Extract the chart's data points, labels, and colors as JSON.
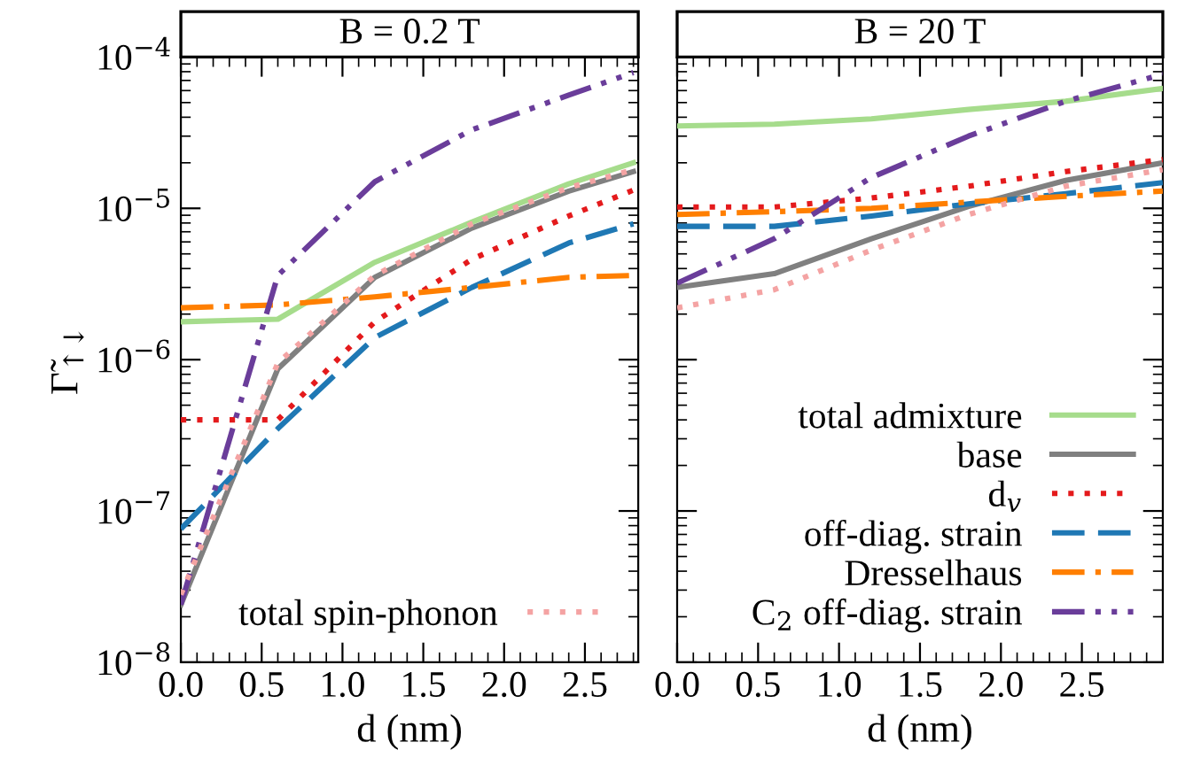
{
  "chart_data": [
    {
      "type": "line",
      "title": "B = 0.2 T",
      "xlabel": "d (nm)",
      "ylabel": "Γ̃$_{↑↓}$",
      "log": "y",
      "grid": false,
      "legend": "bottom right",
      "x": [
        0,
        0.6,
        1.2,
        1.8,
        2.4,
        2.8
      ],
      "xlim": [
        0,
        2.83
      ],
      "xticks": [
        {
          "value": 0,
          "label": "0.0"
        },
        0.5,
        {
          "value": 1,
          "label": "1.0"
        },
        1.5,
        {
          "value": 2,
          "label": "2.0"
        },
        2.5
      ],
      "ylim": [
        1e-08,
        0.0001
      ],
      "yticks": [
        {
          "value": 1e-08,
          "label": "10$^{−8}$"
        },
        {
          "value": 1e-07,
          "label": "10$^{−7}$"
        },
        {
          "value": 1e-06,
          "label": "10$^{−6}$"
        },
        {
          "value": 1e-05,
          "label": "10$^{−5}$"
        },
        {
          "value": 0.0001,
          "label": "10$^{−4}$"
        }
      ],
      "series": [
        {
          "color": "#a6dc8c",
          "line_style": "solid",
          "values": [
            1.78e-06,
            1.85e-06,
            4.4e-06,
            8.1e-06,
            1.45e-05,
            2e-05
          ]
        },
        {
          "color": "#808080",
          "line_style": "solid",
          "values": [
            2.4e-08,
            8.7e-07,
            3.5e-06,
            7.4e-06,
            1.3e-05,
            1.75e-05
          ]
        },
        {
          "color": "#e41a1c",
          "line_style": "dotted",
          "values": [
            4e-07,
            4e-07,
            1.78e-06,
            4.6e-06,
            8.9e-06,
            1.32e-05
          ]
        },
        {
          "color": "#1f78b4",
          "line_style": "dashed",
          "values": [
            7.6e-08,
            3.5e-07,
            1.4e-06,
            3e-06,
            5.9e-06,
            7.9e-06
          ]
        },
        {
          "color": "#ff7f00",
          "line_style": "dashdot",
          "values": [
            2.2e-06,
            2.3e-06,
            2.6e-06,
            3e-06,
            3.5e-06,
            3.6e-06
          ]
        },
        {
          "color": "#6a3d9a",
          "line_style": "dashdotdot",
          "values": [
            2.4e-08,
            3.6e-06,
            1.5e-05,
            3.3e-05,
            5.6e-05,
            7.9e-05
          ]
        },
        {
          "name": "total spin-phonon",
          "color": "#f4a3a3",
          "line_style": "dotted",
          "values": [
            2.8e-08,
            9.5e-07,
            3.6e-06,
            7.9e-06,
            1.37e-05,
            1.8e-05
          ]
        }
      ]
    },
    {
      "type": "line",
      "title": "B = 20 T",
      "xlabel": "d (nm)",
      "log": "y",
      "grid": false,
      "legend": "bottom right",
      "tick_labels": "x",
      "x": [
        0,
        0.6,
        1.2,
        1.8,
        2.4,
        3.0
      ],
      "xlim": [
        0,
        3.0
      ],
      "xticks": [
        {
          "value": 0,
          "label": "0.0"
        },
        0.5,
        {
          "value": 1,
          "label": "1.0"
        },
        1.5,
        {
          "value": 2,
          "label": "2.0"
        },
        2.5
      ],
      "ylim": [
        1e-08,
        0.0001
      ],
      "yticks": [
        1e-08,
        1e-07,
        1e-06,
        1e-05,
        0.0001
      ],
      "series": [
        {
          "name": "total admixture",
          "color": "#a6dc8c",
          "line_style": "solid",
          "values": [
            3.5e-05,
            3.6e-05,
            3.9e-05,
            4.5e-05,
            5.1e-05,
            6.2e-05
          ]
        },
        {
          "name": "base",
          "color": "#808080",
          "line_style": "solid",
          "values": [
            3e-06,
            3.7e-06,
            6.3e-06,
            1.03e-05,
            1.53e-05,
            2e-05
          ]
        },
        {
          "name": "d$_{v}$",
          "color": "#e41a1c",
          "line_style": "dotted",
          "values": [
            1.02e-05,
            1.02e-05,
            1.17e-05,
            1.4e-05,
            1.75e-05,
            2.1e-05
          ]
        },
        {
          "name": "off-diag. strain",
          "color": "#1f78b4",
          "line_style": "dashed",
          "values": [
            7.6e-06,
            7.6e-06,
            8.9e-06,
            1.07e-05,
            1.25e-05,
            1.48e-05
          ]
        },
        {
          "name": "Dresselhaus",
          "color": "#ff7f00",
          "line_style": "dashdot",
          "values": [
            9.1e-06,
            9.5e-06,
            1e-05,
            1.1e-05,
            1.2e-05,
            1.3e-05
          ]
        },
        {
          "name": "C$_{2}$ off-diag. strain",
          "color": "#6a3d9a",
          "line_style": "dashdotdot",
          "values": [
            3.2e-06,
            6.3e-06,
            1.6e-05,
            3e-05,
            5.1e-05,
            7.7e-05
          ]
        },
        {
          "color": "#f4a3a3",
          "line_style": "dotted",
          "values": [
            2.2e-06,
            2.9e-06,
            5.3e-06,
            9.1e-06,
            1.4e-05,
            1.8e-05
          ]
        }
      ]
    }
  ]
}
